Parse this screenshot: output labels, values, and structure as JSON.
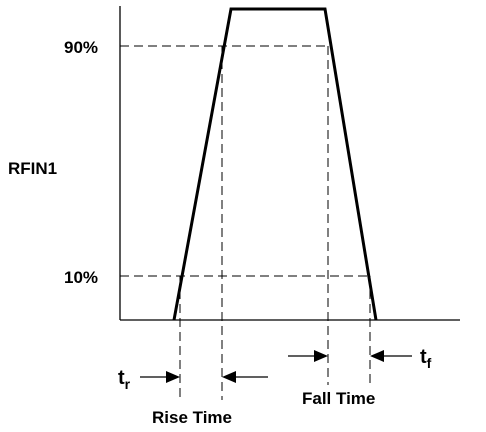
{
  "diagram": {
    "y_label": "RFIN1",
    "level_high_label": "90%",
    "level_low_label": "10%",
    "rise_time_label": "Rise Time",
    "fall_time_label": "Fall Time",
    "rise_symbol": {
      "main": "t",
      "sub": "r"
    },
    "fall_symbol": {
      "main": "t",
      "sub": "f"
    }
  }
}
